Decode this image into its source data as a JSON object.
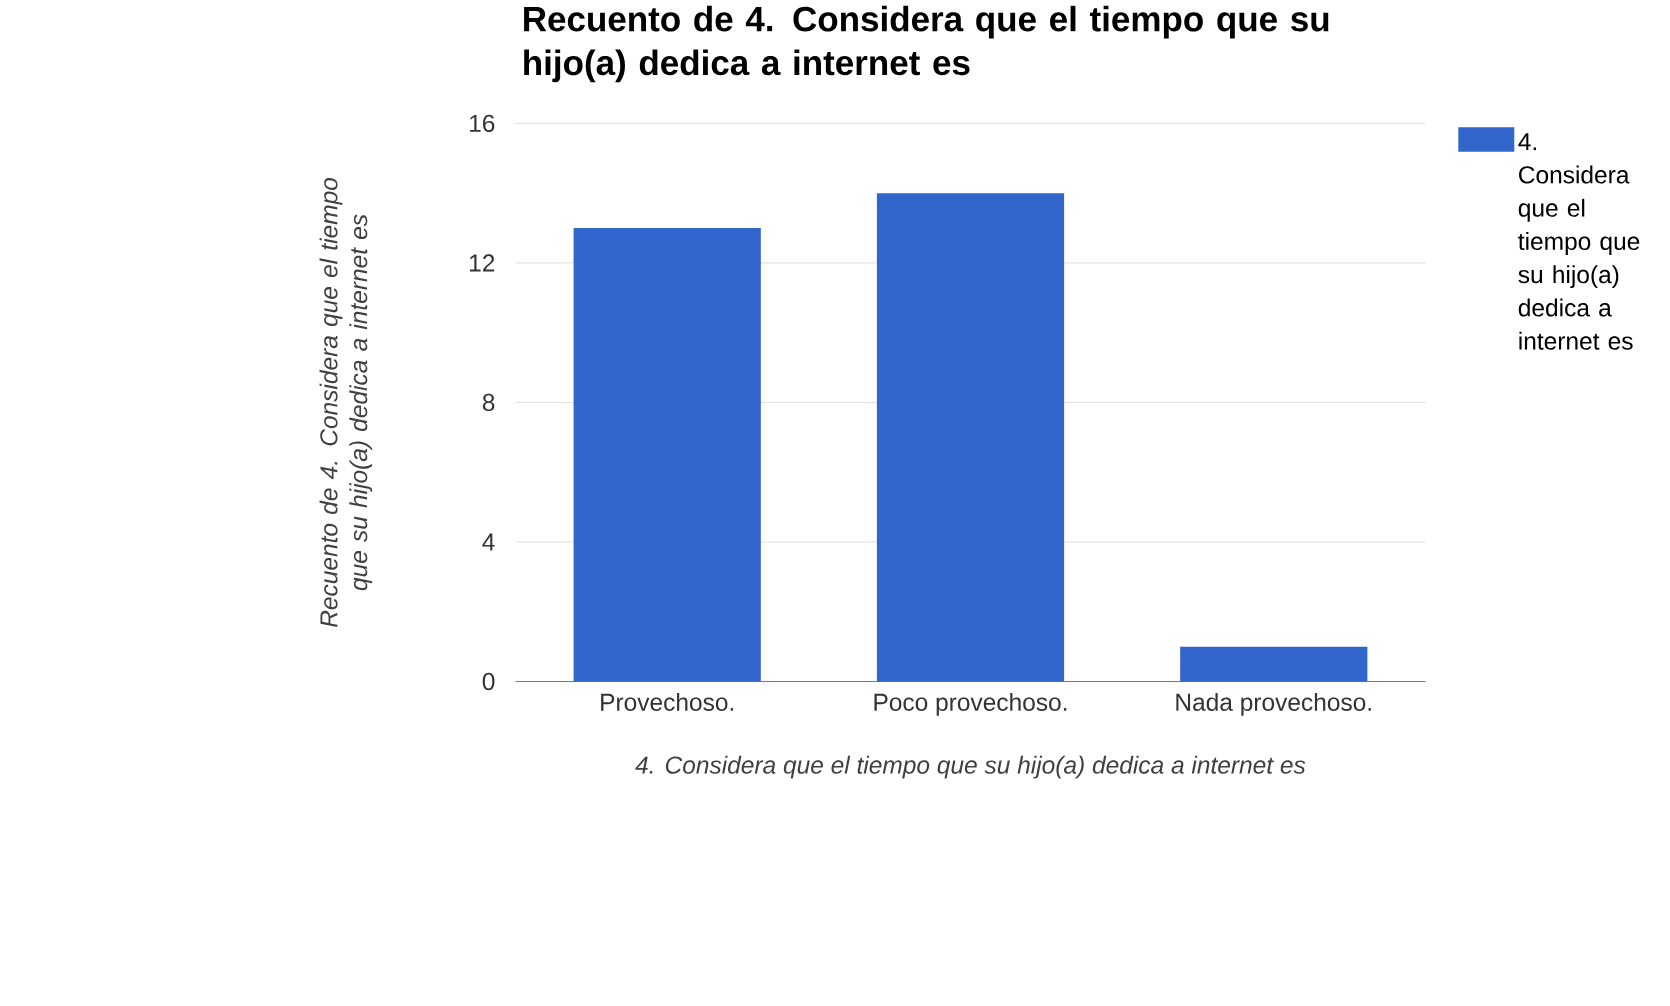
{
  "chart_data": {
    "type": "bar",
    "title": "Recuento de 4. Considera que el tiempo que su hijo(a) dedica a internet es",
    "xlabel": "4. Considera que el tiempo que su hijo(a) dedica a internet es",
    "ylabel": "Recuento de 4. Considera que el tiempo que su hijo(a) dedica a internet es",
    "categories": [
      "Provechoso.",
      "Poco provechoso.",
      "Nada provechoso."
    ],
    "series": [
      {
        "name": "4. Considera que el tiempo que su hijo(a) dedica a internet es",
        "color": "#3366cc",
        "values": [
          13,
          14,
          1
        ]
      }
    ],
    "ylim": [
      0,
      16
    ],
    "yticks": [
      0,
      4,
      8,
      12,
      16
    ],
    "grid": "y",
    "legend": "right"
  }
}
